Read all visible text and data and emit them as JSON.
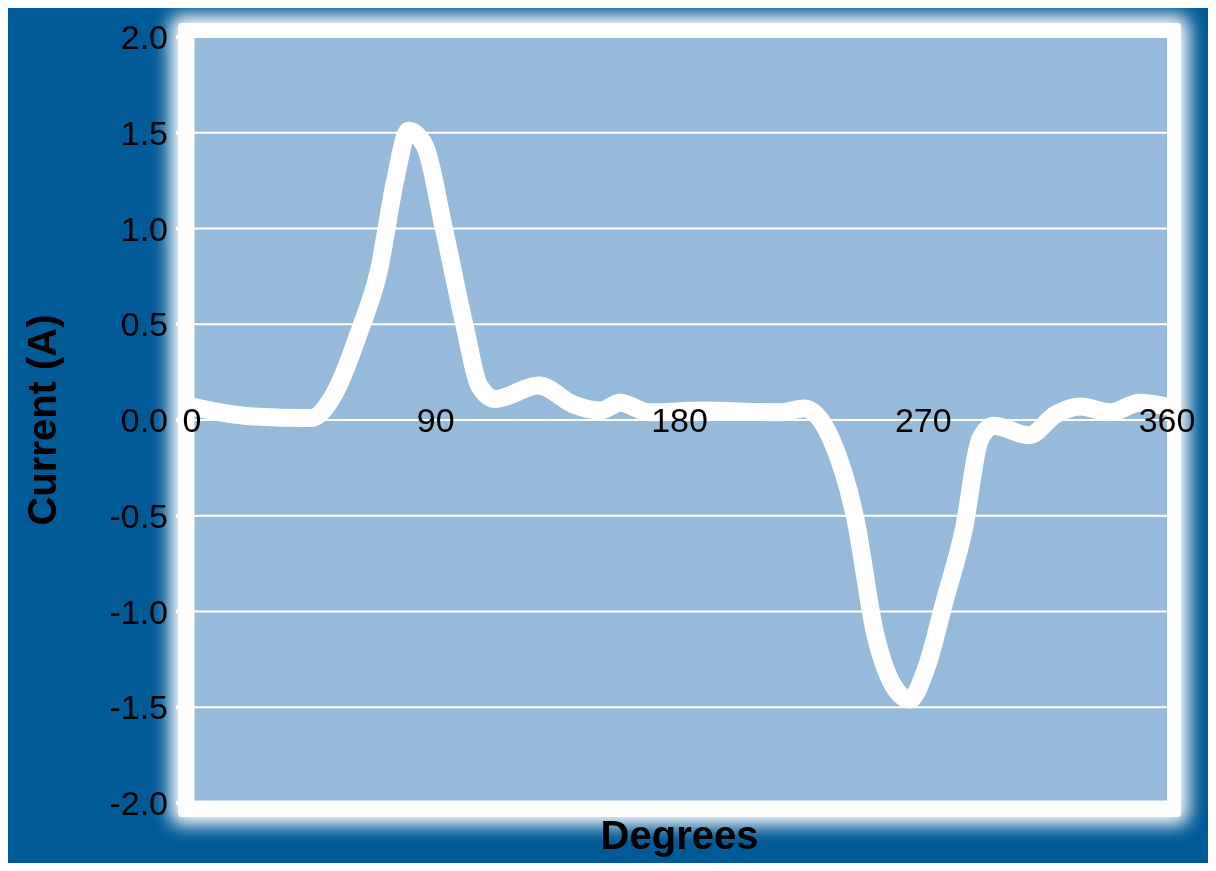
{
  "chart_data": {
    "type": "line",
    "xlabel": "Degrees",
    "ylabel": "Current (A)",
    "x": [
      0,
      21,
      44,
      51,
      62,
      69,
      75,
      80,
      86,
      93,
      101,
      106,
      112,
      128,
      141,
      151,
      158,
      169,
      188,
      217,
      226,
      236,
      245,
      252,
      260,
      265,
      271,
      278,
      285,
      291,
      296,
      309,
      319,
      328,
      339,
      350,
      360
    ],
    "series": [
      {
        "color": "#ffffff",
        "values": [
          0.07,
          0.02,
          0.01,
          0.1,
          0.47,
          0.78,
          1.25,
          1.51,
          1.43,
          1.0,
          0.47,
          0.18,
          0.11,
          0.18,
          0.08,
          0.05,
          0.09,
          0.04,
          0.05,
          0.04,
          0.06,
          -0.1,
          -0.52,
          -1.1,
          -1.41,
          -1.46,
          -1.3,
          -0.94,
          -0.57,
          -0.1,
          -0.03,
          -0.08,
          0.03,
          0.07,
          0.04,
          0.09,
          0.07
        ]
      }
    ],
    "xlim": [
      0,
      360
    ],
    "xticks": [
      0,
      90,
      180,
      270,
      360
    ],
    "ylim": [
      -2,
      2
    ],
    "yticks": [
      {
        "value": -2,
        "label": "-2.0"
      },
      {
        "value": -1.5,
        "label": "-1.5"
      },
      {
        "value": -1,
        "label": "-1.0"
      },
      {
        "value": -0.5,
        "label": "-0.5"
      },
      {
        "value": 0,
        "label": "0.0"
      },
      {
        "value": 0.5,
        "label": "0.5"
      },
      {
        "value": 1,
        "label": "1.0"
      },
      {
        "value": 1.5,
        "label": "1.5"
      },
      {
        "value": 2,
        "label": "2.0"
      }
    ],
    "grid": "y",
    "marker": "none",
    "line_style": "solid"
  }
}
